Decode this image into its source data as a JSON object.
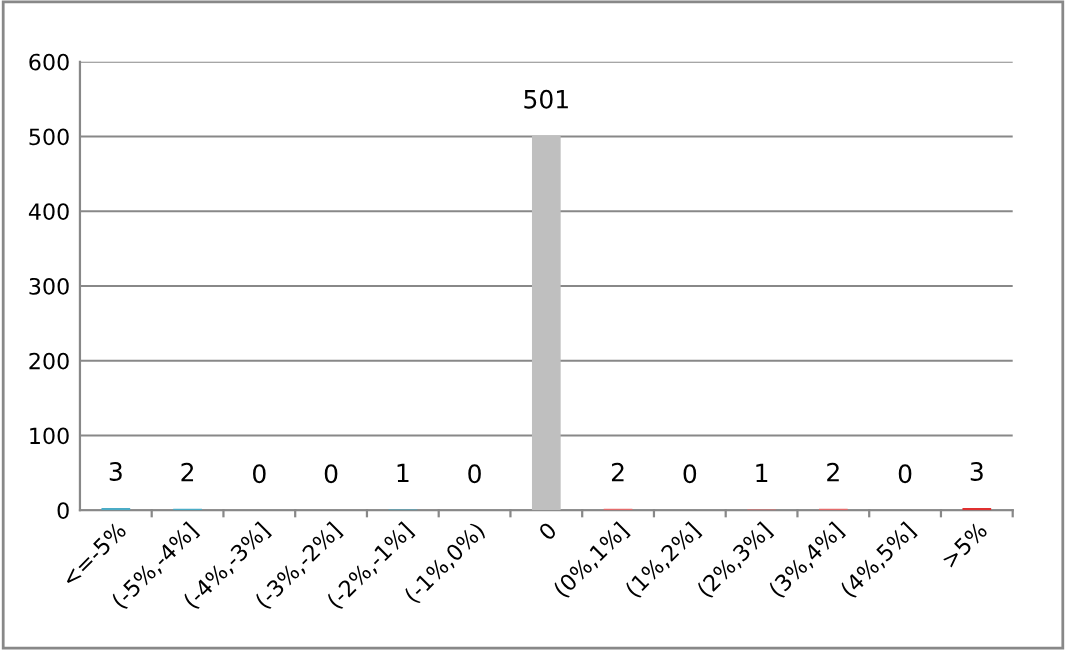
{
  "chart_data": {
    "type": "bar",
    "categories": [
      "<=-5%",
      "(-5%,-4%]",
      "(-4%,-3%]",
      "(-3%,-2%]",
      "(-2%,-1%]",
      "(-1%,0%)",
      "0",
      "(0%,1%]",
      "(1%,2%]",
      "(2%,3%]",
      "(3%,4%]",
      "(4%,5%]",
      ">5%"
    ],
    "values": [
      3,
      2,
      0,
      0,
      1,
      0,
      501,
      2,
      0,
      1,
      2,
      0,
      3
    ],
    "colors": [
      "#4bacc6",
      "#4bacc6",
      "#4bacc6",
      "#4bacc6",
      "#4bacc6",
      "#4bacc6",
      "#bfbfbf",
      "#e46c6c",
      "#e46c6c",
      "#e46c6c",
      "#e46c6c",
      "#e46c6c",
      "#e03030"
    ],
    "ylim": [
      0,
      600
    ],
    "yticks": [
      0,
      100,
      200,
      300,
      400,
      500,
      600
    ],
    "grid": "y",
    "data_labels": true
  }
}
